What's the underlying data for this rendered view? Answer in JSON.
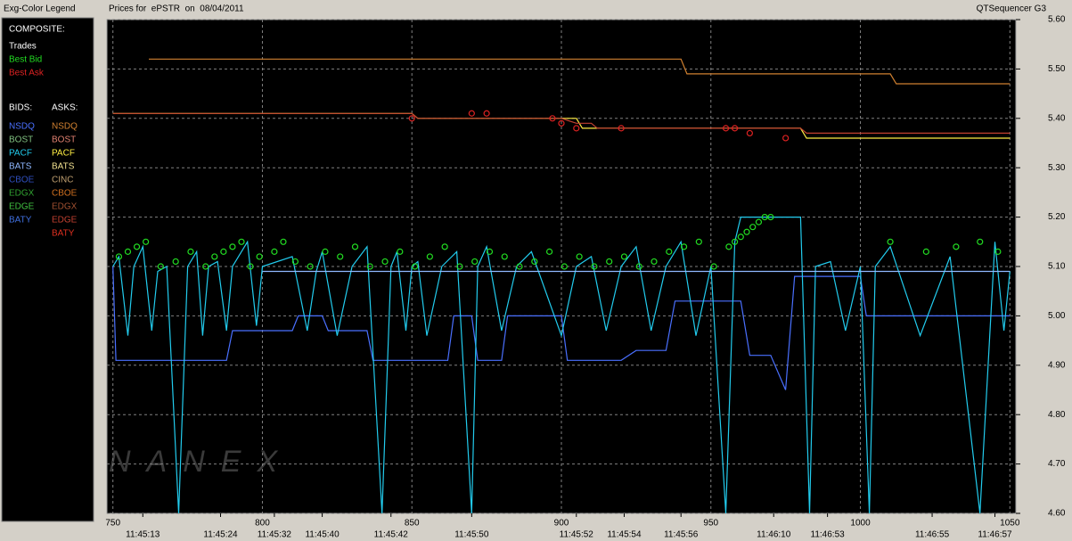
{
  "chart_data": {
    "type": "line",
    "legend_title": "Exg-Color Legend",
    "title": "Prices for  ePSTR  on  08/04/2011",
    "app_title": "QTSequencer G3",
    "watermark": "NANEX",
    "grid": true,
    "xlim": [
      748,
      1052
    ],
    "xticks": [
      750,
      800,
      850,
      900,
      950,
      1000,
      1050
    ],
    "time_labels": [
      {
        "value": 760,
        "label": "11:45:13"
      },
      {
        "value": 786,
        "label": "11:45:24"
      },
      {
        "value": 804,
        "label": "11:45:32"
      },
      {
        "value": 820,
        "label": "11:45:40"
      },
      {
        "value": 843,
        "label": "11:45:42"
      },
      {
        "value": 870,
        "label": "11:45:50"
      },
      {
        "value": 905,
        "label": "11:45:52"
      },
      {
        "value": 921,
        "label": "11:45:54"
      },
      {
        "value": 940,
        "label": "11:45:56"
      },
      {
        "value": 971,
        "label": "11:46:10"
      },
      {
        "value": 989,
        "label": "11:46:53"
      },
      {
        "value": 1024,
        "label": "11:46:55"
      },
      {
        "value": 1045,
        "label": "11:46:57"
      }
    ],
    "ylim": [
      4.6,
      5.6
    ],
    "yticks": [
      {
        "value": 4.6,
        "label": "4.60"
      },
      {
        "value": 4.7,
        "label": "4.70"
      },
      {
        "value": 4.8,
        "label": "4.80"
      },
      {
        "value": 4.9,
        "label": "4.90"
      },
      {
        "value": 5.0,
        "label": "5.00"
      },
      {
        "value": 5.1,
        "label": "5.10"
      },
      {
        "value": 5.2,
        "label": "5.20"
      },
      {
        "value": 5.3,
        "label": "5.30"
      },
      {
        "value": 5.4,
        "label": "5.40"
      },
      {
        "value": 5.5,
        "label": "5.50"
      },
      {
        "value": 5.6,
        "label": "5.60"
      }
    ],
    "composite_label": "COMPOSITE:",
    "composite": [
      {
        "name": "Trades",
        "color": "#ffffff"
      },
      {
        "name": "Best Bid",
        "color": "#22dd22",
        "style": "markers",
        "x": [
          752,
          755,
          758,
          761,
          766,
          771,
          776,
          781,
          784,
          787,
          790,
          793,
          796,
          799,
          804,
          807,
          811,
          816,
          821,
          826,
          831,
          836,
          841,
          846,
          851,
          856,
          861,
          866,
          871,
          876,
          881,
          886,
          891,
          896,
          901,
          906,
          911,
          916,
          921,
          926,
          931,
          936,
          941,
          946,
          951,
          956,
          958,
          960,
          962,
          964,
          966,
          968,
          970,
          1010,
          1022,
          1032,
          1040,
          1046
        ],
        "values": [
          5.12,
          5.13,
          5.14,
          5.15,
          5.1,
          5.11,
          5.13,
          5.1,
          5.12,
          5.13,
          5.14,
          5.15,
          5.1,
          5.12,
          5.13,
          5.15,
          5.11,
          5.1,
          5.13,
          5.12,
          5.14,
          5.1,
          5.11,
          5.13,
          5.1,
          5.12,
          5.14,
          5.1,
          5.11,
          5.13,
          5.12,
          5.1,
          5.11,
          5.13,
          5.1,
          5.12,
          5.1,
          5.11,
          5.12,
          5.1,
          5.11,
          5.13,
          5.14,
          5.15,
          5.1,
          5.14,
          5.15,
          5.16,
          5.17,
          5.18,
          5.19,
          5.2,
          5.2,
          5.15,
          5.13,
          5.14,
          5.15,
          5.13
        ]
      },
      {
        "name": "Best Ask",
        "color": "#dd2222",
        "style": "markers",
        "x": [
          850,
          870,
          875,
          897,
          900,
          905,
          920,
          955,
          958,
          963,
          975
        ],
        "values": [
          5.4,
          5.41,
          5.41,
          5.4,
          5.39,
          5.38,
          5.38,
          5.38,
          5.38,
          5.37,
          5.36
        ]
      }
    ],
    "bids_label": "BIDS:",
    "asks_label": "ASKS:",
    "bids": [
      {
        "name": "NSDQ",
        "color": "#4a70ff",
        "x": [
          750,
          751,
          788,
          790,
          810,
          812,
          820,
          822,
          835,
          837,
          862,
          864,
          870,
          872,
          880,
          882,
          900,
          902,
          920,
          925,
          935,
          938,
          960,
          963,
          970,
          975,
          978,
          1000,
          1002,
          1050
        ],
        "values": [
          5.1,
          4.91,
          4.91,
          4.97,
          4.97,
          5.0,
          5.0,
          4.97,
          4.97,
          4.91,
          4.91,
          5.0,
          5.0,
          4.91,
          4.91,
          5.0,
          5.0,
          4.91,
          4.91,
          4.93,
          4.93,
          5.03,
          5.03,
          4.92,
          4.92,
          4.85,
          5.08,
          5.08,
          5.0,
          5.0
        ]
      },
      {
        "name": "BOST",
        "color": "#80c080"
      },
      {
        "name": "PACF",
        "color": "#22ccee",
        "x": [
          750,
          752,
          755,
          757,
          760,
          763,
          765,
          768,
          772,
          775,
          778,
          780,
          782,
          785,
          788,
          790,
          795,
          798,
          800,
          810,
          815,
          818,
          820,
          825,
          830,
          835,
          840,
          843,
          845,
          848,
          850,
          852,
          855,
          860,
          865,
          870,
          872,
          875,
          880,
          885,
          890,
          900,
          905,
          910,
          915,
          920,
          925,
          930,
          935,
          940,
          945,
          950,
          955,
          958,
          960,
          965,
          970,
          975,
          980,
          983,
          985,
          990,
          995,
          1000,
          1003,
          1005,
          1010,
          1020,
          1030,
          1040,
          1045,
          1048,
          1050
        ],
        "values": [
          5.1,
          5.12,
          4.96,
          5.1,
          5.14,
          4.97,
          5.09,
          5.1,
          4.6,
          5.1,
          5.13,
          4.96,
          5.1,
          5.11,
          4.97,
          5.1,
          5.15,
          4.98,
          5.1,
          5.12,
          4.97,
          5.09,
          5.13,
          4.96,
          5.1,
          5.14,
          4.6,
          5.1,
          5.13,
          4.97,
          5.1,
          5.11,
          4.96,
          5.1,
          5.13,
          4.6,
          5.1,
          5.14,
          4.97,
          5.1,
          5.13,
          4.96,
          5.1,
          5.12,
          4.97,
          5.1,
          5.14,
          4.97,
          5.1,
          5.15,
          4.96,
          5.1,
          4.6,
          5.15,
          5.2,
          5.2,
          5.2,
          5.2,
          5.2,
          4.6,
          5.1,
          5.11,
          4.97,
          5.1,
          4.6,
          5.1,
          5.14,
          4.96,
          5.12,
          4.6,
          5.15,
          4.97,
          5.09
        ]
      },
      {
        "name": "BATS",
        "color": "#8fb8ff",
        "x": [
          800,
          1050
        ],
        "values": [
          5.09,
          5.09
        ]
      },
      {
        "name": "CBOE",
        "color": "#3050c0"
      },
      {
        "name": "EDGX",
        "color": "#30a030"
      },
      {
        "name": "EDGE",
        "color": "#40c040"
      },
      {
        "name": "BATY",
        "color": "#4070e0"
      }
    ],
    "asks": [
      {
        "name": "NSDQ",
        "color": "#d08030",
        "x": [
          762,
          940,
          942,
          1010,
          1012,
          1050
        ],
        "values": [
          5.52,
          5.52,
          5.49,
          5.49,
          5.47,
          5.47
        ]
      },
      {
        "name": "BOST",
        "color": "#e08070"
      },
      {
        "name": "PACF",
        "color": "#ffee44",
        "x": [
          750,
          850,
          852,
          905,
          907,
          980,
          982,
          1050
        ],
        "values": [
          5.41,
          5.41,
          5.4,
          5.4,
          5.38,
          5.38,
          5.36,
          5.36
        ]
      },
      {
        "name": "BATS",
        "color": "#f0e090"
      },
      {
        "name": "CINC",
        "color": "#c0a070"
      },
      {
        "name": "CBOE",
        "color": "#d07020"
      },
      {
        "name": "EDGX",
        "color": "#a05030"
      },
      {
        "name": "EDGE",
        "color": "#c04030",
        "x": [
          750,
          850,
          852,
          900,
          905,
          910,
          912,
          980,
          982,
          1050
        ],
        "values": [
          5.41,
          5.41,
          5.4,
          5.4,
          5.39,
          5.39,
          5.38,
          5.38,
          5.37,
          5.37
        ]
      },
      {
        "name": "BATY",
        "color": "#e03020"
      }
    ]
  }
}
